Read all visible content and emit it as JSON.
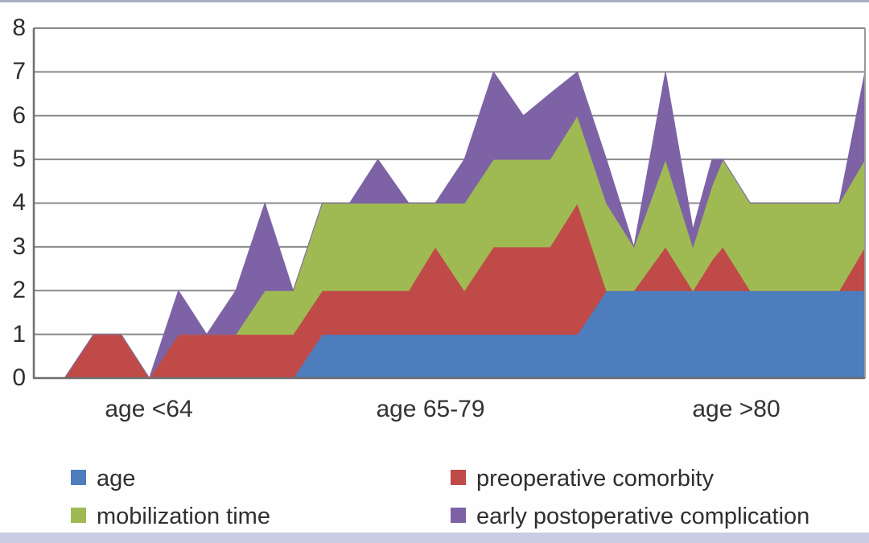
{
  "page": {
    "background": "#fefefe",
    "top_strip_color": "#a9aec5",
    "bottom_strip_color": "#c8cde3"
  },
  "chart_data": {
    "type": "area",
    "stacked": true,
    "title": "",
    "xlabel": "",
    "ylabel": "",
    "ylim": [
      0,
      8
    ],
    "y_ticks": [
      "0",
      "1",
      "2",
      "3",
      "4",
      "5",
      "6",
      "7",
      "8"
    ],
    "grid": true,
    "gridline_color": "#8a8a8a",
    "axis_color": "#6e6e6e",
    "right_border_color": "#9a9a9a",
    "text_color": "#2f2f2f",
    "x_group_labels": [
      "age <64",
      "age 65-79",
      "age >80"
    ],
    "x_positions": [
      0.037,
      0.072,
      0.105,
      0.139,
      0.174,
      0.208,
      0.243,
      0.278,
      0.312,
      0.347,
      0.38,
      0.414,
      0.451,
      0.483,
      0.518,
      0.553,
      0.589,
      0.621,
      0.654,
      0.689,
      0.722,
      0.76,
      0.793,
      0.816,
      0.829,
      0.862,
      0.969,
      1.0
    ],
    "series": [
      {
        "name": "age",
        "color": "#4d7dbd",
        "values": [
          0,
          0,
          0,
          0,
          0,
          0,
          0,
          0,
          0,
          1,
          1,
          1,
          1,
          1,
          1,
          1,
          1,
          1,
          1,
          2,
          2,
          2,
          2,
          2,
          2,
          2,
          2,
          2
        ]
      },
      {
        "name": "preoperative comorbity",
        "color": "#c04a47",
        "values": [
          0,
          1,
          1,
          0,
          1,
          1,
          1,
          1,
          1,
          1,
          1,
          1,
          1,
          2,
          1,
          2,
          2,
          2,
          3,
          0,
          0,
          1,
          0,
          0.7,
          1,
          0,
          0,
          1
        ]
      },
      {
        "name": "mobilization time",
        "color": "#9fba53",
        "values": [
          0,
          0,
          0,
          0,
          0,
          0,
          0,
          1,
          1,
          2,
          2,
          2,
          2,
          1,
          2,
          2,
          2,
          2,
          2,
          2,
          1,
          2,
          1,
          1.7,
          2,
          2,
          2,
          2
        ]
      },
      {
        "name": "early postoperative complication",
        "color": "#7d63a5",
        "values": [
          0,
          0,
          0,
          0,
          1,
          0,
          1,
          2,
          0,
          0,
          0,
          1,
          0,
          0,
          1,
          2,
          1,
          1.5,
          1,
          1,
          0,
          2,
          0.4,
          0.6,
          0,
          0,
          0,
          2
        ]
      }
    ],
    "legend_position": "bottom",
    "legend_order": [
      {
        "label": "age",
        "color": "#4d7dbd"
      },
      {
        "label": "preoperative comorbity",
        "color": "#c04a47"
      },
      {
        "label": "mobilization time",
        "color": "#9fba53"
      },
      {
        "label": "early postoperative complication",
        "color": "#7d63a5"
      }
    ]
  }
}
